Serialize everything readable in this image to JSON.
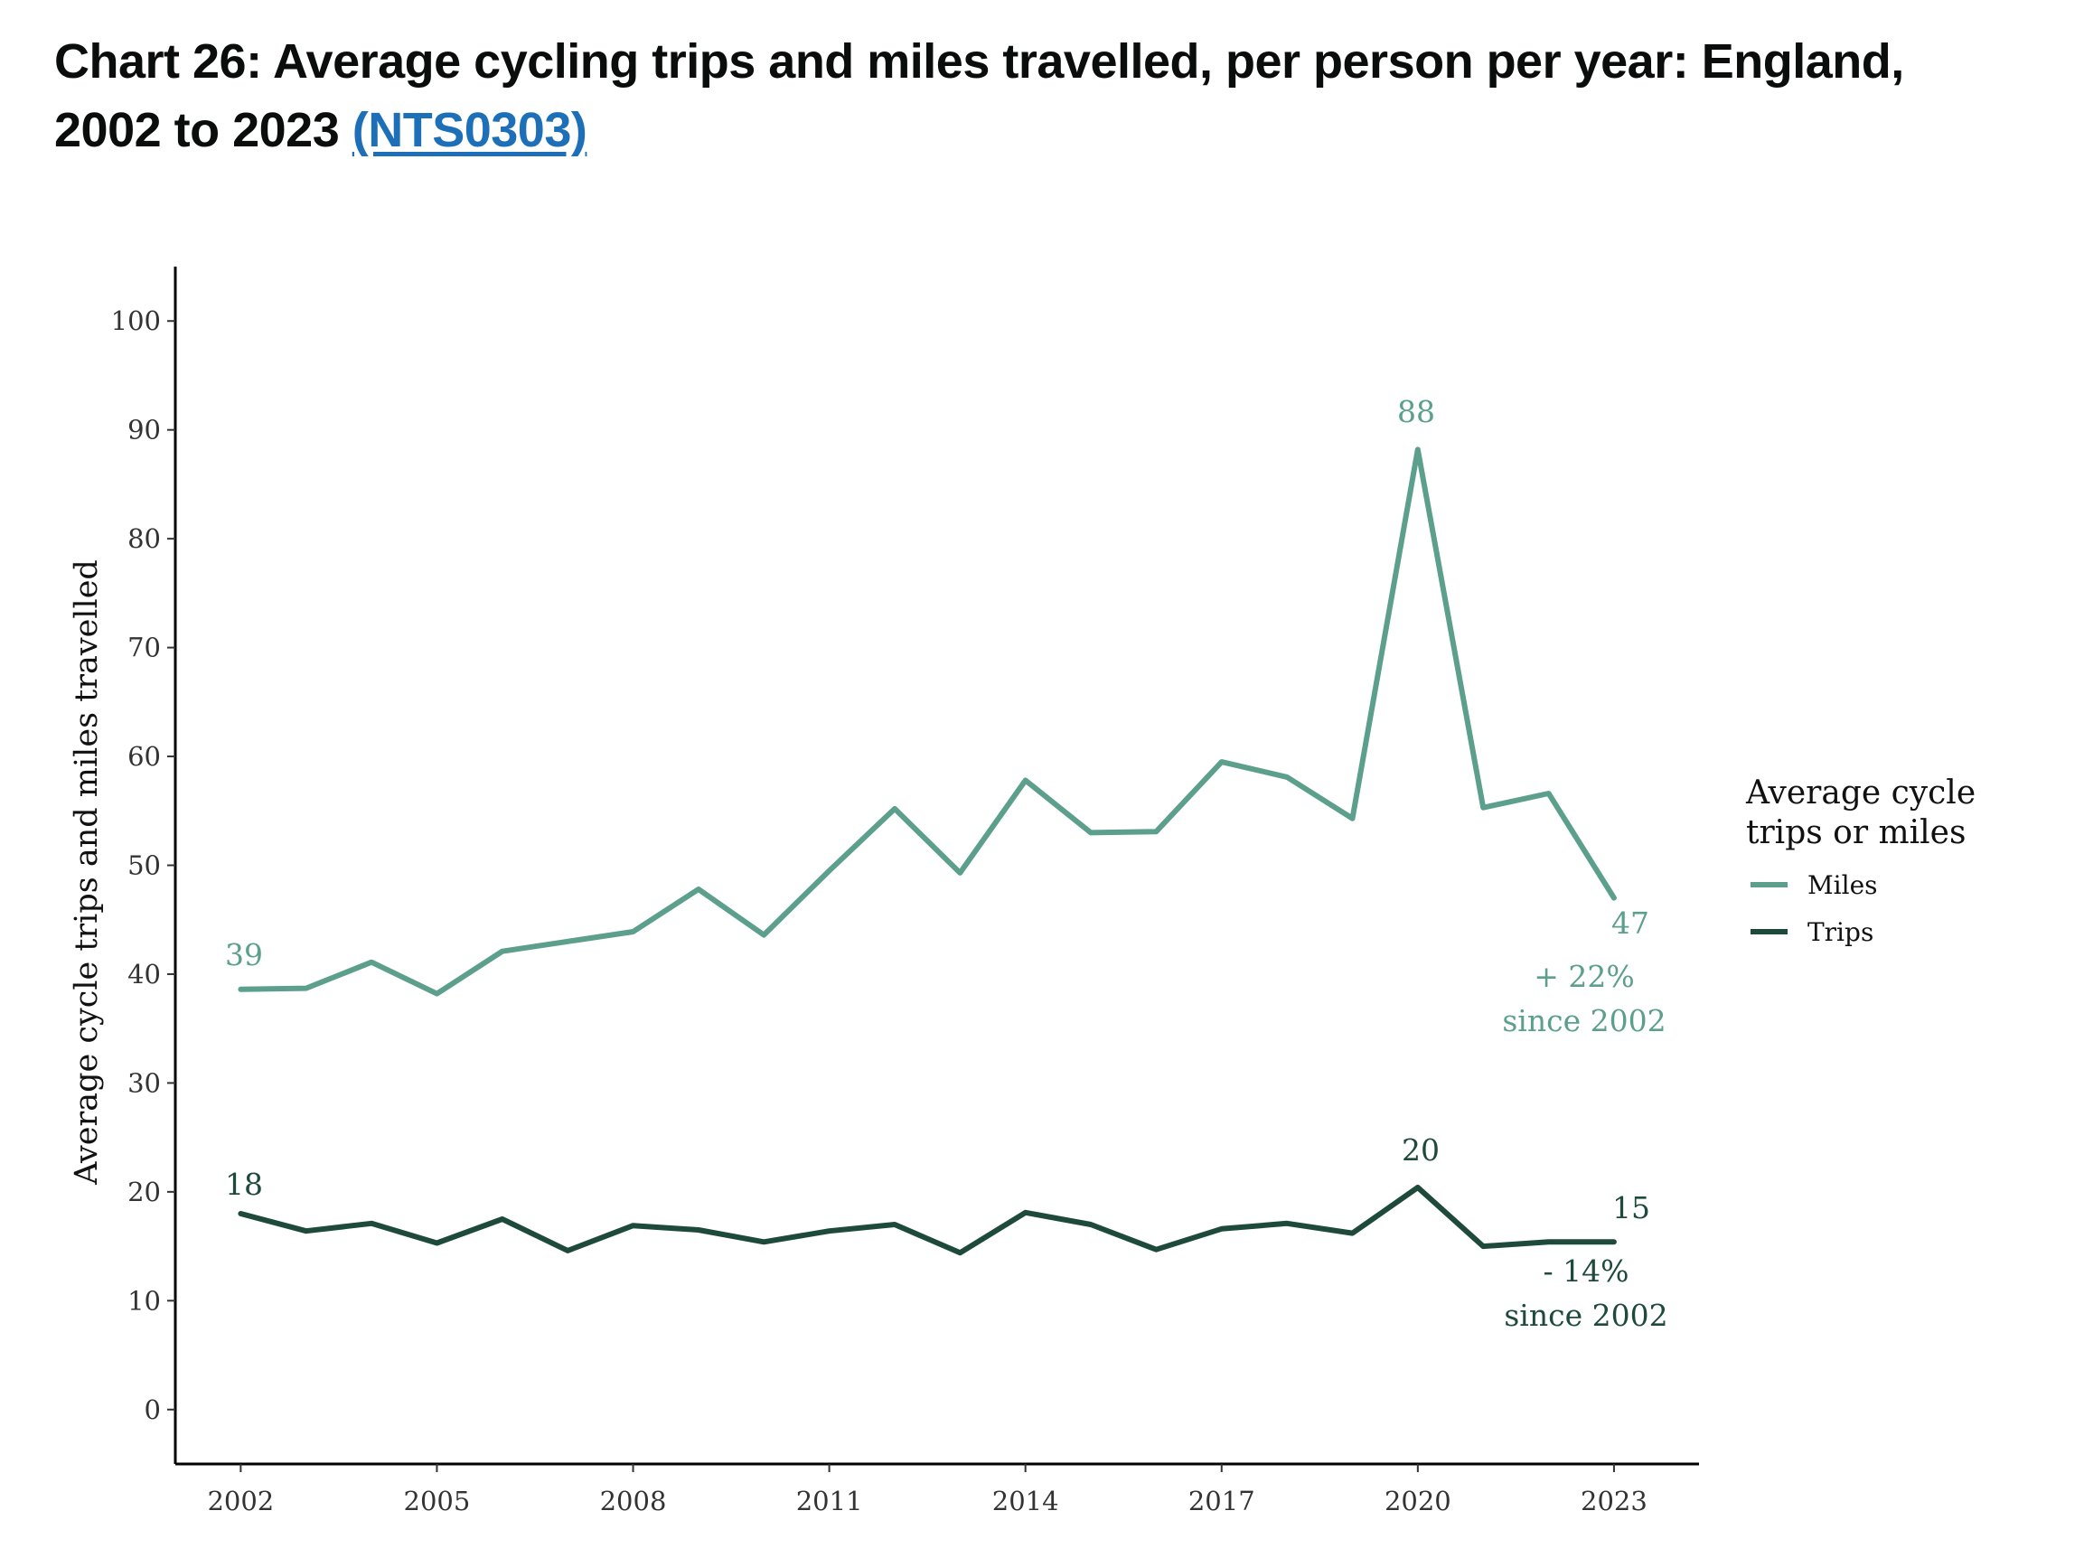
{
  "header": {
    "title": "Chart 26: Average cycling trips and miles travelled, per person per year: England, 2002 to 2023",
    "link_text": "(NTS0303)"
  },
  "chart_data": {
    "type": "line",
    "x": [
      2002,
      2003,
      2004,
      2005,
      2006,
      2007,
      2008,
      2009,
      2010,
      2011,
      2012,
      2013,
      2014,
      2015,
      2016,
      2017,
      2018,
      2019,
      2020,
      2021,
      2022,
      2023
    ],
    "series": [
      {
        "name": "Miles",
        "color": "#5b9f8c",
        "values": [
          38.6,
          38.7,
          41.1,
          38.2,
          42.1,
          43.0,
          43.9,
          47.8,
          43.6,
          49.5,
          55.2,
          49.3,
          57.8,
          53.0,
          53.1,
          59.5,
          58.1,
          54.3,
          88.2,
          55.3,
          56.6,
          47.0
        ]
      },
      {
        "name": "Trips",
        "color": "#1e4a3c",
        "values": [
          18.0,
          16.4,
          17.1,
          15.3,
          17.5,
          14.6,
          16.9,
          16.5,
          15.4,
          16.4,
          17.0,
          14.4,
          18.1,
          17.0,
          14.7,
          16.6,
          17.1,
          16.2,
          20.4,
          15.0,
          15.4,
          15.4
        ]
      }
    ],
    "xticks": [
      "2002",
      "2005",
      "2008",
      "2011",
      "2014",
      "2017",
      "2020",
      "2023"
    ],
    "yticks": [
      "0",
      "10",
      "20",
      "30",
      "40",
      "50",
      "60",
      "70",
      "80",
      "90",
      "100"
    ],
    "ylim": [
      -5,
      105
    ],
    "xlim": [
      2001,
      2024.3
    ],
    "ylabel": "Average cycle trips and miles travelled",
    "xlabel": "",
    "legend": {
      "title_line1": "Average cycle",
      "title_line2": "trips or miles",
      "position": "right",
      "items": [
        "Miles",
        "Trips"
      ]
    },
    "annotations": {
      "miles_start": "39",
      "miles_peak": "88",
      "miles_end": "47",
      "miles_change_line1": "+ 22%",
      "miles_change_line2": "since 2002",
      "trips_start": "18",
      "trips_peak": "20",
      "trips_end": "15",
      "trips_change_line1": "- 14%",
      "trips_change_line2": "since 2002"
    },
    "grid": false
  }
}
